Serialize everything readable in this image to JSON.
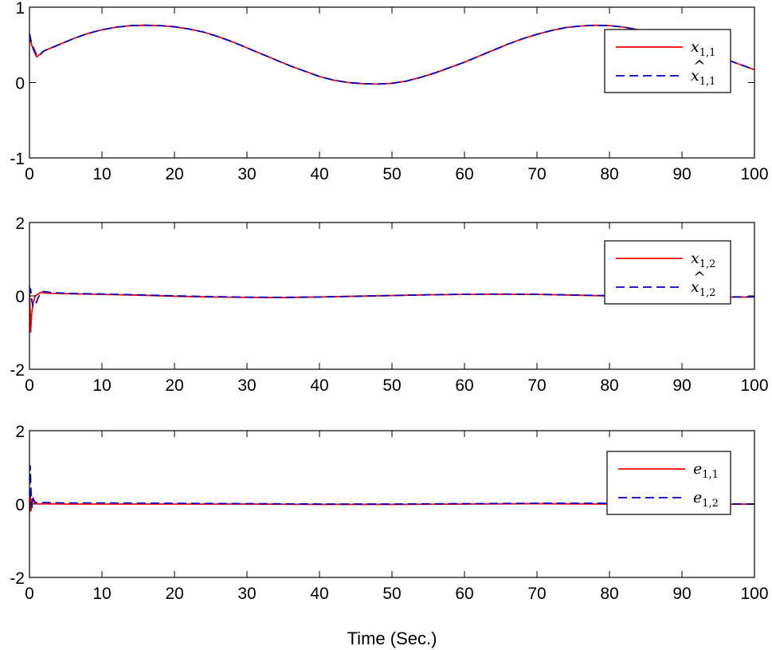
{
  "figure": {
    "xlabel": "Time (Sec.)",
    "series_colors": {
      "first": "#ff0000",
      "second": "#0000cc"
    }
  },
  "chart_data": [
    {
      "type": "line",
      "xlim": [
        0,
        100
      ],
      "ylim": [
        -1,
        1
      ],
      "xticks": [
        0,
        10,
        20,
        30,
        40,
        50,
        60,
        70,
        80,
        90,
        100
      ],
      "yticks": [
        -1,
        0,
        1
      ],
      "xlabel": "",
      "legend_position": "top-right",
      "series": [
        {
          "name": "x1,1",
          "symbol": "x",
          "hat": false,
          "sub": "1,1",
          "style": "solid",
          "color": "#ff0000",
          "x": [
            0,
            0.3,
            0.6,
            1,
            1.5,
            2,
            4,
            6,
            8,
            10,
            12,
            14,
            16,
            18,
            20,
            22,
            24,
            26,
            28,
            30,
            32,
            34,
            36,
            38,
            40,
            42,
            44,
            46,
            48,
            50,
            52,
            54,
            56,
            58,
            60,
            62,
            64,
            66,
            68,
            70,
            72,
            74,
            76,
            78,
            80,
            82,
            84,
            86,
            88,
            90,
            92,
            94,
            96,
            98,
            100
          ],
          "y": [
            0.6,
            0.5,
            0.42,
            0.34,
            0.38,
            0.42,
            0.5,
            0.58,
            0.65,
            0.7,
            0.735,
            0.755,
            0.76,
            0.755,
            0.74,
            0.71,
            0.67,
            0.61,
            0.54,
            0.46,
            0.38,
            0.3,
            0.22,
            0.15,
            0.08,
            0.03,
            0.0,
            -0.015,
            -0.02,
            -0.01,
            0.02,
            0.07,
            0.13,
            0.2,
            0.27,
            0.35,
            0.43,
            0.51,
            0.58,
            0.64,
            0.69,
            0.73,
            0.75,
            0.76,
            0.755,
            0.735,
            0.7,
            0.65,
            0.59,
            0.52,
            0.45,
            0.38,
            0.31,
            0.24,
            0.17
          ]
        },
        {
          "name": "x̂1,1",
          "symbol": "x",
          "hat": true,
          "sub": "1,1",
          "style": "dashed",
          "color": "#0000cc",
          "x": [
            0,
            0.3,
            0.6,
            1,
            1.5,
            2,
            4,
            6,
            8,
            10,
            12,
            14,
            16,
            18,
            20,
            22,
            24,
            26,
            28,
            30,
            32,
            34,
            36,
            38,
            40,
            42,
            44,
            46,
            48,
            50,
            52,
            54,
            56,
            58,
            60,
            62,
            64,
            66,
            68,
            70,
            72,
            74,
            76,
            78,
            80,
            82,
            84,
            86,
            88,
            90,
            92,
            94,
            96,
            98,
            100
          ],
          "y": [
            0.65,
            0.52,
            0.45,
            0.36,
            0.37,
            0.42,
            0.5,
            0.58,
            0.65,
            0.7,
            0.735,
            0.755,
            0.76,
            0.755,
            0.74,
            0.71,
            0.67,
            0.61,
            0.54,
            0.46,
            0.38,
            0.3,
            0.22,
            0.15,
            0.08,
            0.03,
            0.0,
            -0.015,
            -0.02,
            -0.01,
            0.02,
            0.07,
            0.13,
            0.2,
            0.27,
            0.35,
            0.43,
            0.51,
            0.58,
            0.64,
            0.69,
            0.73,
            0.75,
            0.76,
            0.755,
            0.735,
            0.7,
            0.65,
            0.59,
            0.52,
            0.45,
            0.38,
            0.31,
            0.24,
            0.17
          ]
        }
      ]
    },
    {
      "type": "line",
      "xlim": [
        0,
        100
      ],
      "ylim": [
        -2,
        2
      ],
      "xticks": [
        0,
        10,
        20,
        30,
        40,
        50,
        60,
        70,
        80,
        90,
        100
      ],
      "yticks": [
        -2,
        0,
        2
      ],
      "xlabel": "",
      "legend_position": "top-right",
      "series": [
        {
          "name": "x1,2",
          "symbol": "x",
          "hat": false,
          "sub": "1,2",
          "style": "solid",
          "color": "#ff0000",
          "x": [
            0,
            0.15,
            0.3,
            0.5,
            0.8,
            1.2,
            1.6,
            2,
            3,
            5,
            10,
            15,
            20,
            25,
            30,
            35,
            40,
            45,
            50,
            55,
            60,
            65,
            70,
            75,
            80,
            85,
            90,
            95,
            100
          ],
          "y": [
            0.3,
            -1.0,
            -0.5,
            -0.2,
            0.0,
            0.05,
            0.1,
            0.08,
            0.07,
            0.06,
            0.04,
            0.02,
            -0.01,
            -0.03,
            -0.04,
            -0.045,
            -0.03,
            -0.01,
            0.01,
            0.03,
            0.04,
            0.045,
            0.04,
            0.02,
            0.0,
            -0.02,
            -0.03,
            -0.035,
            -0.03
          ]
        },
        {
          "name": "x̂1,2",
          "symbol": "x",
          "hat": true,
          "sub": "1,2",
          "style": "dashed",
          "color": "#0000cc",
          "x": [
            0,
            0.15,
            0.3,
            0.5,
            0.8,
            1.2,
            1.6,
            2,
            3,
            5,
            10,
            15,
            20,
            25,
            30,
            35,
            40,
            45,
            50,
            55,
            60,
            65,
            70,
            75,
            80,
            85,
            90,
            95,
            100
          ],
          "y": [
            0.1,
            0.2,
            -0.1,
            -0.3,
            -0.25,
            -0.05,
            0.1,
            0.12,
            0.09,
            0.07,
            0.05,
            0.03,
            0.0,
            -0.02,
            -0.035,
            -0.04,
            -0.03,
            -0.01,
            0.01,
            0.03,
            0.045,
            0.05,
            0.045,
            0.025,
            0.005,
            -0.015,
            -0.025,
            -0.03,
            -0.025
          ]
        }
      ]
    },
    {
      "type": "line",
      "xlim": [
        0,
        100
      ],
      "ylim": [
        -2,
        2
      ],
      "xticks": [
        0,
        10,
        20,
        30,
        40,
        50,
        60,
        70,
        80,
        90,
        100
      ],
      "yticks": [
        -2,
        0,
        2
      ],
      "xlabel": "Time (Sec.)",
      "legend_position": "top-right",
      "series": [
        {
          "name": "e1,1",
          "symbol": "e",
          "hat": false,
          "sub": "1,1",
          "style": "solid",
          "color": "#ff0000",
          "x": [
            0,
            0.1,
            0.2,
            0.35,
            0.5,
            0.8,
            1.2,
            2,
            5,
            10,
            20,
            30,
            40,
            50,
            60,
            70,
            80,
            90,
            100
          ],
          "y": [
            0.0,
            0.3,
            -0.2,
            0.15,
            0.05,
            0.02,
            0.0,
            0.01,
            0.0,
            0.0,
            0.0,
            0.0,
            -0.01,
            -0.01,
            0.0,
            0.01,
            0.0,
            -0.01,
            0.0
          ]
        },
        {
          "name": "e1,2",
          "symbol": "e",
          "hat": false,
          "sub": "1,2",
          "style": "dashed",
          "color": "#0000cc",
          "x": [
            0,
            0.1,
            0.2,
            0.35,
            0.5,
            0.8,
            1.2,
            2,
            5,
            10,
            20,
            30,
            40,
            50,
            60,
            70,
            80,
            90,
            100
          ],
          "y": [
            -0.2,
            1.05,
            0.4,
            -0.1,
            0.15,
            0.05,
            0.03,
            0.04,
            0.03,
            0.03,
            0.02,
            0.01,
            0.0,
            0.0,
            0.01,
            0.02,
            0.02,
            0.01,
            0.0
          ]
        }
      ]
    }
  ]
}
